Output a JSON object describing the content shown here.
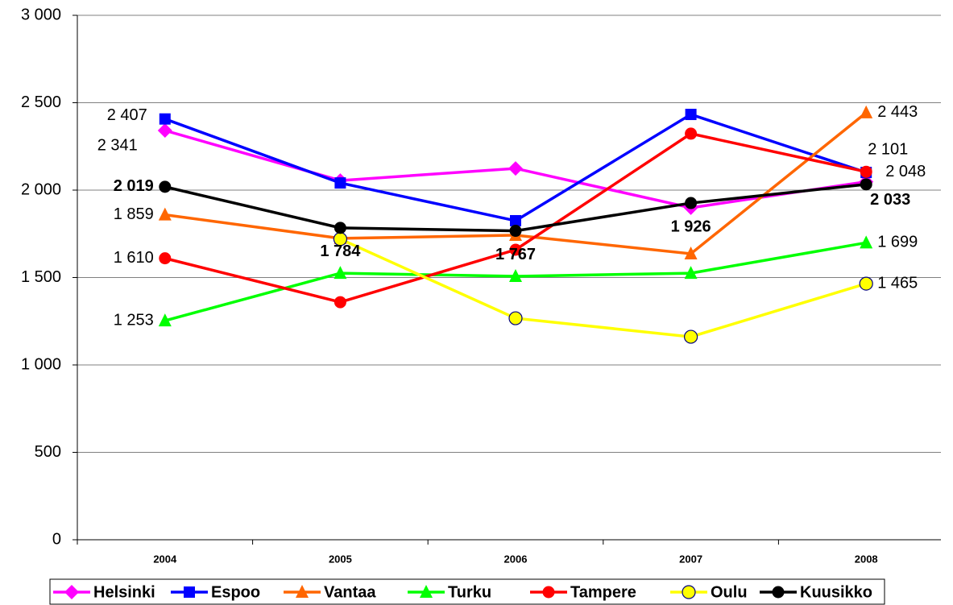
{
  "chart_data": {
    "type": "line",
    "categories": [
      "2004",
      "2005",
      "2006",
      "2007",
      "2008"
    ],
    "ylim": [
      0,
      3000
    ],
    "yticks": [
      {
        "value": 0,
        "label": "0"
      },
      {
        "value": 500,
        "label": "500"
      },
      {
        "value": 1000,
        "label": "1 000"
      },
      {
        "value": 1500,
        "label": "1 500"
      },
      {
        "value": 2000,
        "label": "2 000"
      },
      {
        "value": 2500,
        "label": "2 500"
      },
      {
        "value": 3000,
        "label": "3 000"
      }
    ],
    "grid": true,
    "legend": "bottom",
    "series": [
      {
        "name": "Helsinki",
        "color": "#ff00ff",
        "marker": "diamond",
        "values": [
          2341,
          2055,
          2124,
          1899,
          2048
        ],
        "value_labels": [
          "2 341",
          null,
          null,
          null,
          "2 048"
        ]
      },
      {
        "name": "Espoo",
        "color": "#0000ff",
        "marker": "square",
        "values": [
          2407,
          2041,
          1825,
          2433,
          2101
        ],
        "value_labels": [
          "2 407",
          null,
          null,
          null,
          "2 101"
        ]
      },
      {
        "name": "Vantaa",
        "color": "#ff6600",
        "marker": "triangle",
        "values": [
          1859,
          1724,
          1742,
          1636,
          2443
        ],
        "value_labels": [
          "1 859",
          null,
          null,
          null,
          "2 443"
        ]
      },
      {
        "name": "Turku",
        "color": "#00ff00",
        "marker": "triangle",
        "values": [
          1253,
          1525,
          1507,
          1525,
          1699
        ],
        "value_labels": [
          "1 253",
          null,
          null,
          null,
          "1 699"
        ]
      },
      {
        "name": "Tampere",
        "color": "#ff0000",
        "marker": "circle",
        "values": [
          1610,
          1359,
          1659,
          2323,
          2105
        ],
        "value_labels": [
          "1 610",
          null,
          null,
          null,
          null
        ]
      },
      {
        "name": "Oulu",
        "color": "#ffff00",
        "marker": "open-circle",
        "values": [
          null,
          1720,
          1267,
          1161,
          1465
        ],
        "value_labels": [
          null,
          null,
          null,
          null,
          "1 465"
        ]
      },
      {
        "name": "Kuusikko",
        "color": "#000000",
        "marker": "circle",
        "bold_labels": true,
        "values": [
          2019,
          1784,
          1767,
          1926,
          2033
        ],
        "value_labels": [
          "2 019",
          "1 784",
          "1 767",
          "1 926",
          "2 033"
        ]
      }
    ]
  }
}
